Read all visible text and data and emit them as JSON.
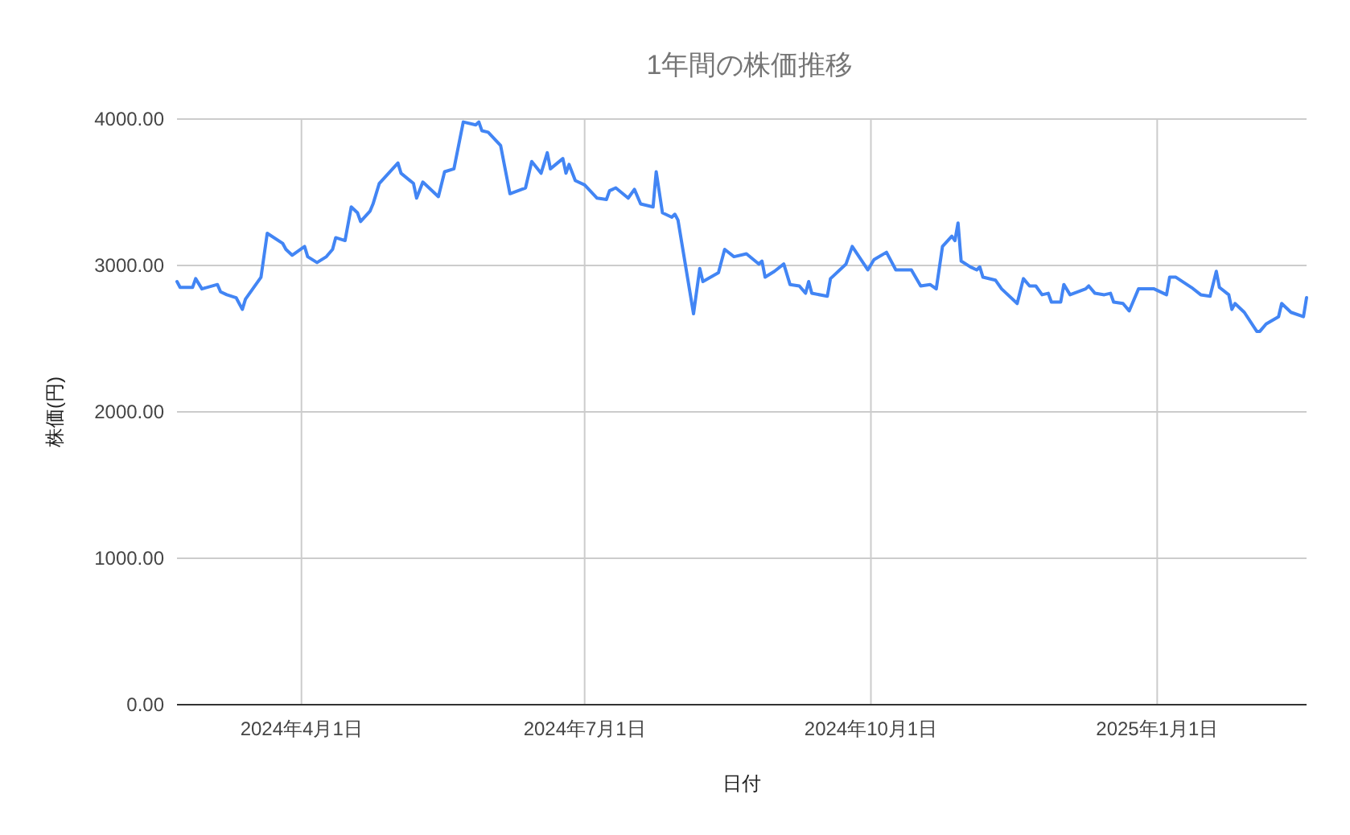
{
  "chart_data": {
    "type": "line",
    "title": "1年間の株価推移",
    "xlabel": "日付",
    "ylabel": "株価(円)",
    "grid": true,
    "marker": "none",
    "line_style": "solid",
    "xlim": [
      "2024-02-21",
      "2025-02-18"
    ],
    "xticks": [
      {
        "value": "2024-04-01",
        "label": "2024年4月1日"
      },
      {
        "value": "2024-07-01",
        "label": "2024年7月1日"
      },
      {
        "value": "2024-10-01",
        "label": "2024年10月1日"
      },
      {
        "value": "2025-01-01",
        "label": "2025年1月1日"
      }
    ],
    "ylim": [
      0,
      4000
    ],
    "yticks": [
      {
        "value": 0,
        "label": "0.00"
      },
      {
        "value": 1000,
        "label": "1000.00"
      },
      {
        "value": 2000,
        "label": "2000.00"
      },
      {
        "value": 3000,
        "label": "3000.00"
      },
      {
        "value": 4000,
        "label": "4000.00"
      }
    ],
    "x": [
      "2024-02-21",
      "2024-02-22",
      "2024-02-26",
      "2024-02-27",
      "2024-02-29",
      "2024-03-05",
      "2024-03-06",
      "2024-03-08",
      "2024-03-11",
      "2024-03-13",
      "2024-03-14",
      "2024-03-19",
      "2024-03-21",
      "2024-03-26",
      "2024-03-27",
      "2024-03-29",
      "2024-04-02",
      "2024-04-03",
      "2024-04-06",
      "2024-04-09",
      "2024-04-11",
      "2024-04-12",
      "2024-04-15",
      "2024-04-17",
      "2024-04-19",
      "2024-04-20",
      "2024-04-23",
      "2024-04-24",
      "2024-04-26",
      "2024-05-02",
      "2024-05-03",
      "2024-05-07",
      "2024-05-08",
      "2024-05-10",
      "2024-05-15",
      "2024-05-17",
      "2024-05-20",
      "2024-05-23",
      "2024-05-27",
      "2024-05-28",
      "2024-05-29",
      "2024-05-31",
      "2024-06-04",
      "2024-06-07",
      "2024-06-12",
      "2024-06-14",
      "2024-06-17",
      "2024-06-19",
      "2024-06-20",
      "2024-06-24",
      "2024-06-25",
      "2024-06-26",
      "2024-06-28",
      "2024-07-01",
      "2024-07-05",
      "2024-07-08",
      "2024-07-09",
      "2024-07-11",
      "2024-07-15",
      "2024-07-17",
      "2024-07-19",
      "2024-07-23",
      "2024-07-24",
      "2024-07-26",
      "2024-07-29",
      "2024-07-30",
      "2024-07-31",
      "2024-08-05",
      "2024-08-07",
      "2024-08-08",
      "2024-08-13",
      "2024-08-15",
      "2024-08-18",
      "2024-08-22",
      "2024-08-26",
      "2024-08-27",
      "2024-08-28",
      "2024-08-31",
      "2024-09-03",
      "2024-09-05",
      "2024-09-08",
      "2024-09-10",
      "2024-09-11",
      "2024-09-12",
      "2024-09-17",
      "2024-09-18",
      "2024-09-23",
      "2024-09-25",
      "2024-09-30",
      "2024-10-02",
      "2024-10-06",
      "2024-10-09",
      "2024-10-14",
      "2024-10-17",
      "2024-10-20",
      "2024-10-22",
      "2024-10-24",
      "2024-10-27",
      "2024-10-28",
      "2024-10-29",
      "2024-10-30",
      "2024-11-02",
      "2024-11-04",
      "2024-11-05",
      "2024-11-06",
      "2024-11-10",
      "2024-11-12",
      "2024-11-17",
      "2024-11-19",
      "2024-11-21",
      "2024-11-23",
      "2024-11-25",
      "2024-11-27",
      "2024-11-28",
      "2024-12-01",
      "2024-12-02",
      "2024-12-04",
      "2024-12-09",
      "2024-12-10",
      "2024-12-12",
      "2024-12-15",
      "2024-12-17",
      "2024-12-18",
      "2024-12-21",
      "2024-12-23",
      "2024-12-26",
      "2024-12-31",
      "2025-01-04",
      "2025-01-05",
      "2025-01-07",
      "2025-01-12",
      "2025-01-15",
      "2025-01-18",
      "2025-01-20",
      "2025-01-21",
      "2025-01-24",
      "2025-01-25",
      "2025-01-26",
      "2025-01-29",
      "2025-02-02",
      "2025-02-03",
      "2025-02-05",
      "2025-02-09",
      "2025-02-10",
      "2025-02-13",
      "2025-02-17",
      "2025-02-18"
    ],
    "series": [
      {
        "color": "#4285f4",
        "values": [
          2890,
          2850,
          2850,
          2910,
          2840,
          2870,
          2820,
          2800,
          2780,
          2700,
          2770,
          2920,
          3220,
          3150,
          3110,
          3070,
          3130,
          3060,
          3020,
          3060,
          3110,
          3190,
          3170,
          3400,
          3360,
          3300,
          3370,
          3420,
          3560,
          3700,
          3630,
          3560,
          3460,
          3570,
          3470,
          3640,
          3660,
          3980,
          3960,
          3980,
          3920,
          3910,
          3820,
          3490,
          3530,
          3710,
          3630,
          3770,
          3660,
          3730,
          3630,
          3690,
          3580,
          3550,
          3460,
          3450,
          3510,
          3530,
          3460,
          3520,
          3420,
          3400,
          3640,
          3360,
          3330,
          3350,
          3310,
          2670,
          2980,
          2890,
          2950,
          3110,
          3060,
          3080,
          3010,
          3030,
          2920,
          2960,
          3010,
          2870,
          2860,
          2810,
          2890,
          2810,
          2790,
          2910,
          3010,
          3130,
          2970,
          3040,
          3090,
          2970,
          2970,
          2860,
          2870,
          2840,
          3130,
          3200,
          3170,
          3290,
          3030,
          2990,
          2970,
          2990,
          2920,
          2900,
          2840,
          2740,
          2910,
          2860,
          2860,
          2800,
          2810,
          2750,
          2750,
          2870,
          2800,
          2840,
          2860,
          2810,
          2800,
          2810,
          2750,
          2740,
          2690,
          2840,
          2840,
          2800,
          2920,
          2920,
          2850,
          2800,
          2790,
          2960,
          2850,
          2800,
          2700,
          2740,
          2680,
          2550,
          2550,
          2600,
          2650,
          2740,
          2680,
          2650,
          2780
        ]
      }
    ]
  }
}
